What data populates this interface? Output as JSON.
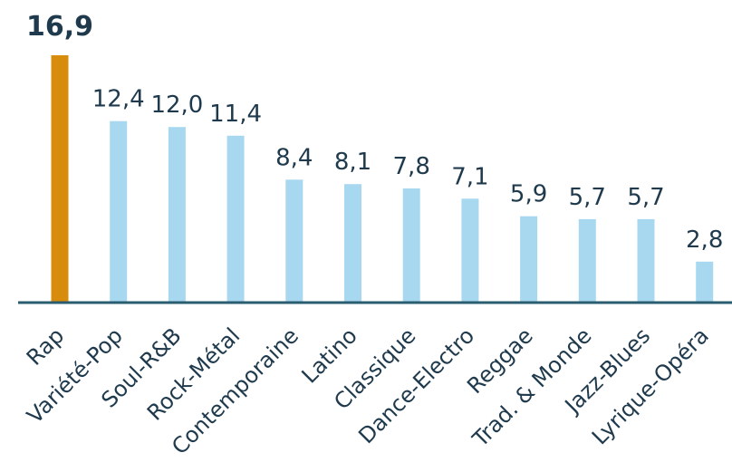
{
  "chart_data": {
    "type": "bar",
    "categories": [
      "Rap",
      "Variété-Pop",
      "Soul-R&B",
      "Rock-Métal",
      "Contemporaine",
      "Latino",
      "Classique",
      "Dance-Electro",
      "Reggae",
      "Trad. & Monde",
      "Jazz-Blues",
      "Lyrique-Opéra"
    ],
    "values": [
      16.9,
      12.4,
      12.0,
      11.4,
      8.4,
      8.1,
      7.8,
      7.1,
      5.9,
      5.7,
      5.7,
      2.8
    ],
    "value_labels": [
      "16,9",
      "12,4",
      "12,0",
      "11,4",
      "8,4",
      "8,1",
      "7,8",
      "7,1",
      "5,9",
      "5,7",
      "5,7",
      "2,8"
    ],
    "highlight_index": 0,
    "colors": {
      "highlight": "#d88c0b",
      "bar": "#a8d8f0",
      "axis": "#2a5d70",
      "text": "#1f3a4d"
    },
    "ylim": [
      0,
      16.9
    ],
    "grid": false,
    "legend": "none",
    "title": "",
    "xlabel": "",
    "ylabel": ""
  }
}
